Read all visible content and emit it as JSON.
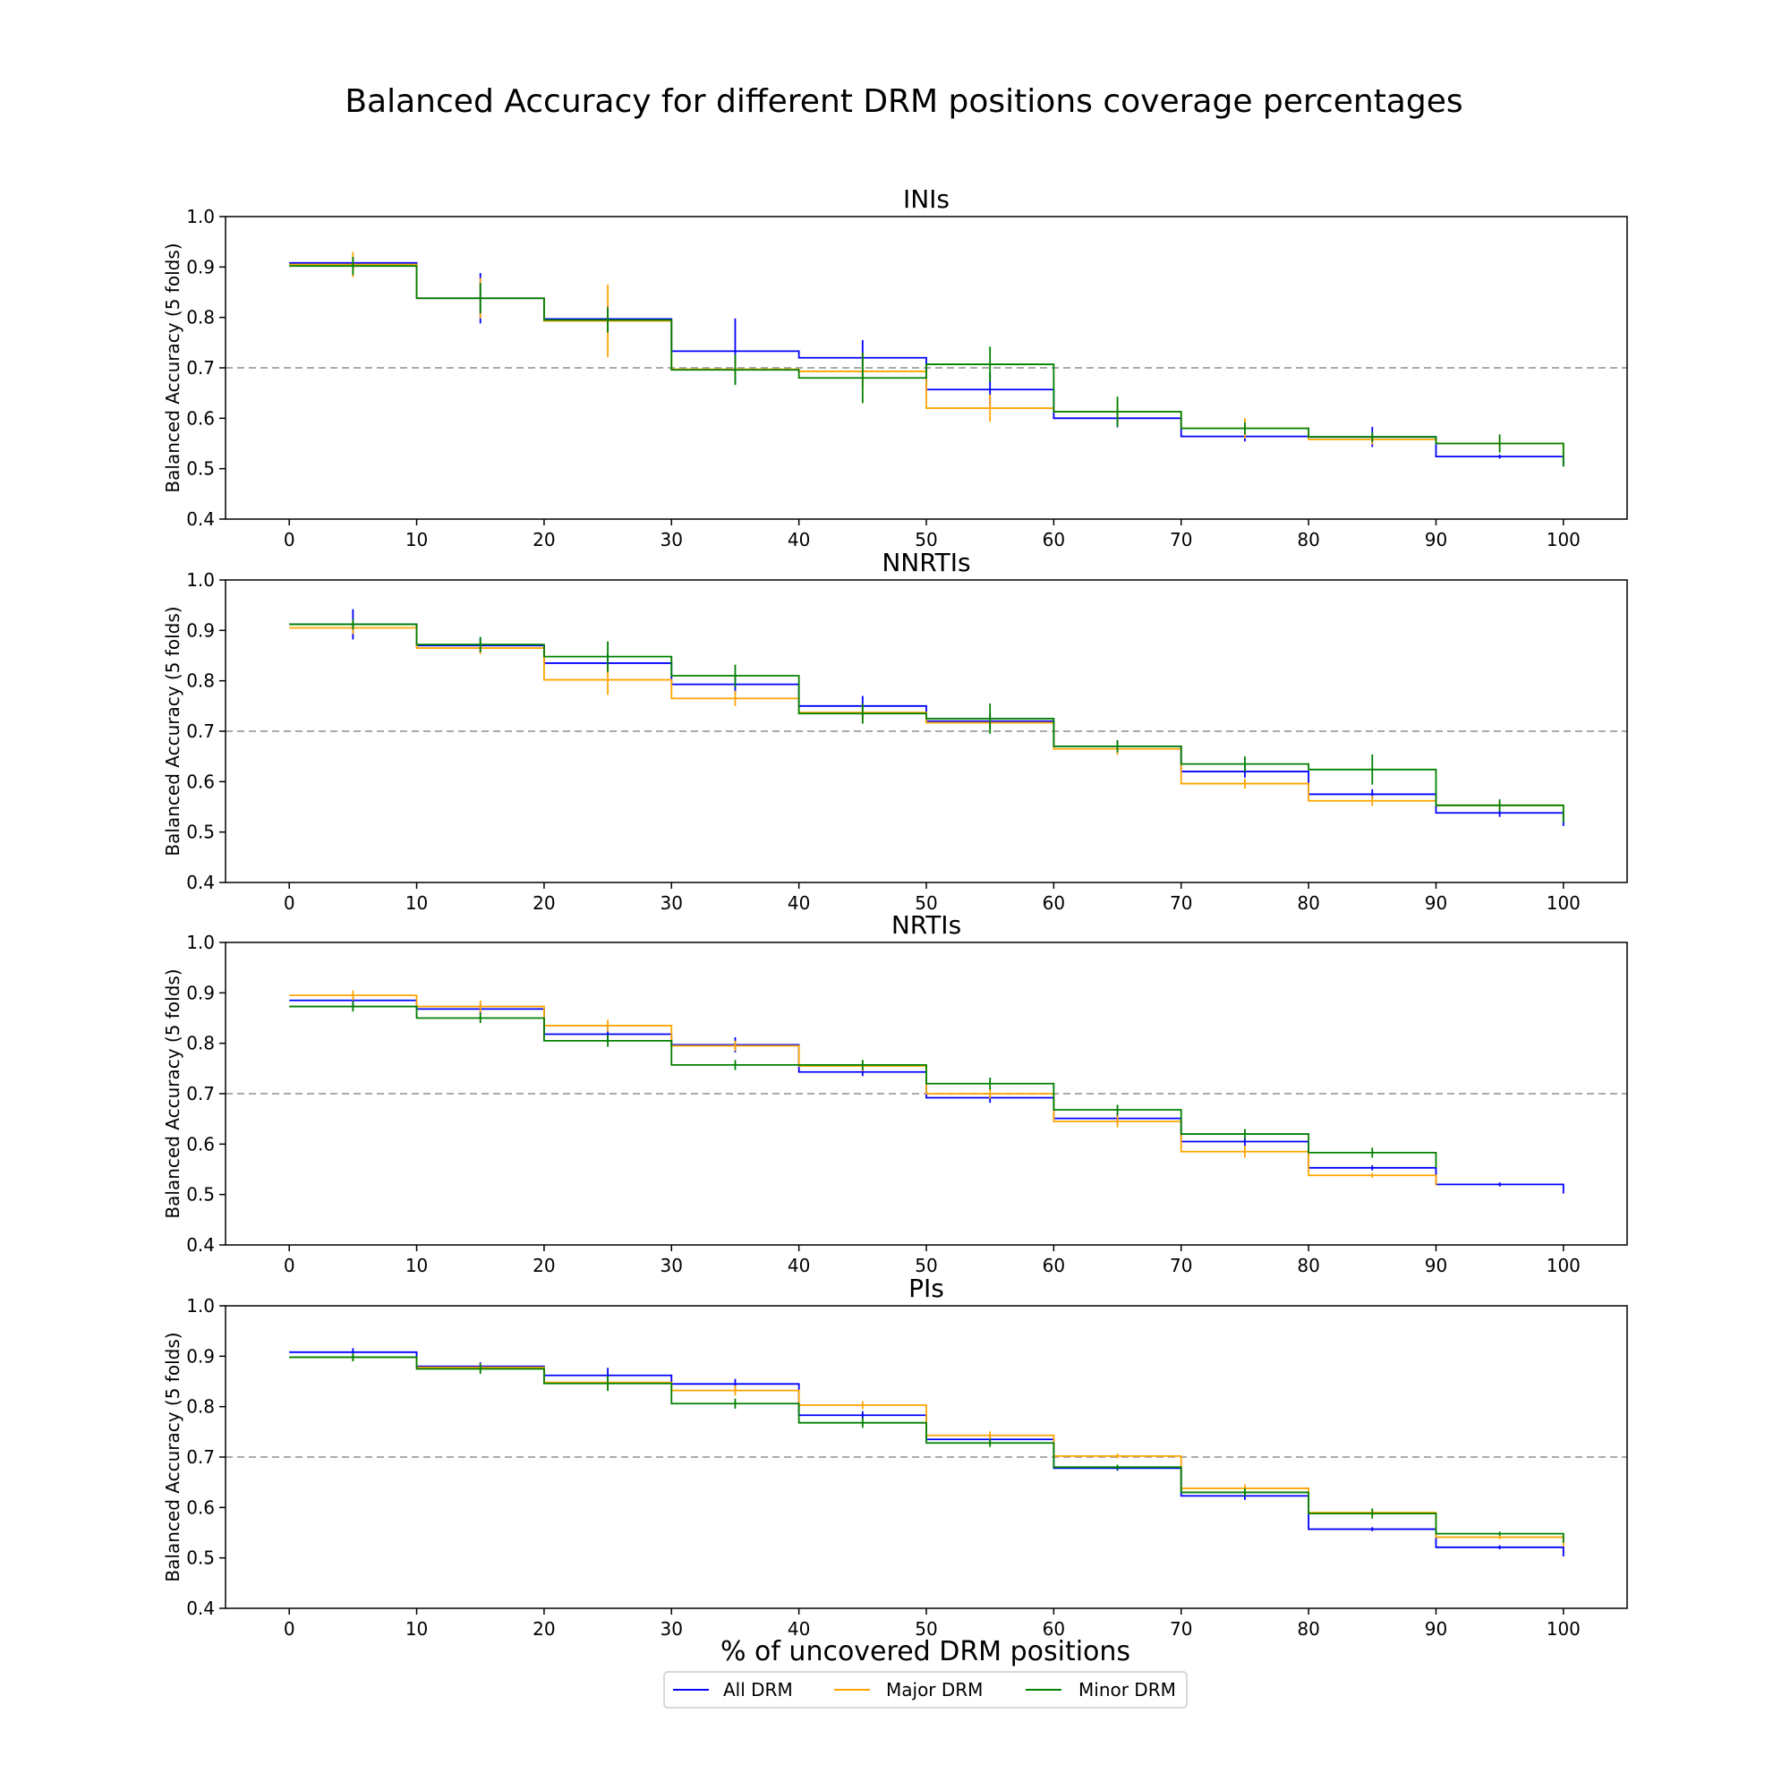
{
  "figure": {
    "title": "Balanced Accuracy for different DRM positions coverage percentages",
    "xlabel": "% of uncovered DRM positions",
    "legend": [
      {
        "label": "All DRM",
        "color": "#0000ff"
      },
      {
        "label": "Major DRM",
        "color": "#ffa500"
      },
      {
        "label": "Minor DRM",
        "color": "#008000"
      }
    ]
  },
  "chart_data": [
    {
      "type": "line",
      "title": "INIs",
      "ylabel": "Balanced Accuracy (5 folds)",
      "xlim": [
        -5,
        105
      ],
      "ylim": [
        0.4,
        1.0
      ],
      "x_ticks": [
        "0",
        "10",
        "20",
        "30",
        "40",
        "50",
        "60",
        "70",
        "80",
        "90",
        "100"
      ],
      "y_ticks": [
        "0.4",
        "0.5",
        "0.6",
        "0.7",
        "0.8",
        "0.9",
        "1.0"
      ],
      "reference_line": 0.7,
      "bin_edges": [
        0,
        10,
        20,
        30,
        40,
        50,
        60,
        70,
        80,
        90,
        100
      ],
      "x": [
        5,
        15,
        25,
        35,
        45,
        55,
        65,
        75,
        85,
        95
      ],
      "series": [
        {
          "name": "All DRM",
          "color": "#0000ff",
          "values": [
            0.908,
            0.838,
            0.797,
            0.733,
            0.72,
            0.657,
            0.6,
            0.564,
            0.563,
            0.524
          ],
          "errors": [
            0.012,
            0.05,
            0.027,
            0.065,
            0.035,
            0.033,
            0.018,
            0.01,
            0.02,
            0.004
          ]
        },
        {
          "name": "Major DRM",
          "color": "#ffa500",
          "values": [
            0.905,
            0.838,
            0.793,
            0.697,
            0.693,
            0.62,
            0.613,
            0.58,
            0.558,
            0.55
          ],
          "errors": [
            0.025,
            0.04,
            0.072,
            0.02,
            0.035,
            0.027,
            0.015,
            0.02,
            0.01,
            0.012
          ]
        },
        {
          "name": "Minor DRM",
          "color": "#008000",
          "values": [
            0.902,
            0.838,
            0.795,
            0.696,
            0.68,
            0.707,
            0.613,
            0.58,
            0.563,
            0.55
          ],
          "errors": [
            0.018,
            0.03,
            0.025,
            0.03,
            0.05,
            0.035,
            0.03,
            0.012,
            0.01,
            0.018
          ]
        }
      ]
    },
    {
      "type": "line",
      "title": "NNRTIs",
      "ylabel": "Balanced Accuracy (5 folds)",
      "xlim": [
        -5,
        105
      ],
      "ylim": [
        0.4,
        1.0
      ],
      "x_ticks": [
        "0",
        "10",
        "20",
        "30",
        "40",
        "50",
        "60",
        "70",
        "80",
        "90",
        "100"
      ],
      "y_ticks": [
        "0.4",
        "0.5",
        "0.6",
        "0.7",
        "0.8",
        "0.9",
        "1.0"
      ],
      "reference_line": 0.7,
      "bin_edges": [
        0,
        10,
        20,
        30,
        40,
        50,
        60,
        70,
        80,
        90,
        100
      ],
      "x": [
        5,
        15,
        25,
        35,
        45,
        55,
        65,
        75,
        85,
        95
      ],
      "series": [
        {
          "name": "All DRM",
          "color": "#0000ff",
          "values": [
            0.912,
            0.87,
            0.835,
            0.793,
            0.75,
            0.72,
            0.67,
            0.62,
            0.575,
            0.538
          ],
          "errors": [
            0.03,
            0.015,
            0.02,
            0.02,
            0.02,
            0.015,
            0.012,
            0.012,
            0.01,
            0.008
          ]
        },
        {
          "name": "Major DRM",
          "color": "#ffa500",
          "values": [
            0.905,
            0.865,
            0.802,
            0.765,
            0.737,
            0.717,
            0.665,
            0.596,
            0.562,
            0.553
          ],
          "errors": [
            0.012,
            0.012,
            0.03,
            0.015,
            0.015,
            0.015,
            0.012,
            0.01,
            0.01,
            0.008
          ]
        },
        {
          "name": "Minor DRM",
          "color": "#008000",
          "values": [
            0.912,
            0.872,
            0.848,
            0.81,
            0.735,
            0.725,
            0.67,
            0.635,
            0.624,
            0.553
          ],
          "errors": [
            0.01,
            0.015,
            0.03,
            0.022,
            0.02,
            0.03,
            0.012,
            0.015,
            0.03,
            0.012
          ]
        }
      ]
    },
    {
      "type": "line",
      "title": "NRTIs",
      "ylabel": "Balanced Accuracy (5 folds)",
      "xlim": [
        -5,
        105
      ],
      "ylim": [
        0.4,
        1.0
      ],
      "x_ticks": [
        "0",
        "10",
        "20",
        "30",
        "40",
        "50",
        "60",
        "70",
        "80",
        "90",
        "100"
      ],
      "y_ticks": [
        "0.4",
        "0.5",
        "0.6",
        "0.7",
        "0.8",
        "0.9",
        "1.0"
      ],
      "reference_line": 0.7,
      "bin_edges": [
        0,
        10,
        20,
        30,
        40,
        50,
        60,
        70,
        80,
        90,
        100
      ],
      "x": [
        5,
        15,
        25,
        35,
        45,
        55,
        65,
        75,
        85,
        95
      ],
      "series": [
        {
          "name": "All DRM",
          "color": "#0000ff",
          "values": [
            0.885,
            0.868,
            0.818,
            0.797,
            0.743,
            0.692,
            0.651,
            0.605,
            0.553,
            0.52
          ],
          "errors": [
            0.01,
            0.01,
            0.015,
            0.015,
            0.008,
            0.01,
            0.01,
            0.01,
            0.005,
            0.004
          ]
        },
        {
          "name": "Major DRM",
          "color": "#ffa500",
          "values": [
            0.895,
            0.873,
            0.835,
            0.795,
            0.755,
            0.7,
            0.645,
            0.585,
            0.538,
            null
          ],
          "errors": [
            0.01,
            0.012,
            0.012,
            0.01,
            0.01,
            0.01,
            0.012,
            0.012,
            0.005,
            null
          ]
        },
        {
          "name": "Minor DRM",
          "color": "#008000",
          "values": [
            0.873,
            0.85,
            0.805,
            0.757,
            0.757,
            0.72,
            0.668,
            0.62,
            0.583,
            null
          ],
          "errors": [
            0.01,
            0.01,
            0.012,
            0.01,
            0.01,
            0.012,
            0.01,
            0.01,
            0.01,
            null
          ]
        }
      ]
    },
    {
      "type": "line",
      "title": "PIs",
      "ylabel": "Balanced Accuracy (5 folds)",
      "xlim": [
        -5,
        105
      ],
      "ylim": [
        0.4,
        1.0
      ],
      "x_ticks": [
        "0",
        "10",
        "20",
        "30",
        "40",
        "50",
        "60",
        "70",
        "80",
        "90",
        "100"
      ],
      "y_ticks": [
        "0.4",
        "0.5",
        "0.6",
        "0.7",
        "0.8",
        "0.9",
        "1.0"
      ],
      "reference_line": 0.7,
      "bin_edges": [
        0,
        10,
        20,
        30,
        40,
        50,
        60,
        70,
        80,
        90,
        100
      ],
      "x": [
        5,
        15,
        25,
        35,
        45,
        55,
        65,
        75,
        85,
        95
      ],
      "series": [
        {
          "name": "All DRM",
          "color": "#0000ff",
          "values": [
            0.908,
            0.88,
            0.862,
            0.845,
            0.783,
            0.735,
            0.678,
            0.623,
            0.557,
            0.521
          ],
          "errors": [
            0.008,
            0.008,
            0.015,
            0.01,
            0.008,
            0.008,
            0.005,
            0.008,
            0.004,
            0.004
          ]
        },
        {
          "name": "Major DRM",
          "color": "#ffa500",
          "values": [
            0.898,
            0.878,
            0.848,
            0.832,
            0.803,
            0.743,
            0.702,
            0.638,
            0.59,
            0.541
          ],
          "errors": [
            0.008,
            0.008,
            0.012,
            0.01,
            0.008,
            0.008,
            0.005,
            0.008,
            0.008,
            0.004
          ]
        },
        {
          "name": "Minor DRM",
          "color": "#008000",
          "values": [
            0.898,
            0.875,
            0.846,
            0.806,
            0.768,
            0.728,
            0.68,
            0.63,
            0.588,
            0.548
          ],
          "errors": [
            0.008,
            0.01,
            0.015,
            0.01,
            0.01,
            0.008,
            0.005,
            0.008,
            0.01,
            0.004
          ]
        }
      ]
    }
  ]
}
